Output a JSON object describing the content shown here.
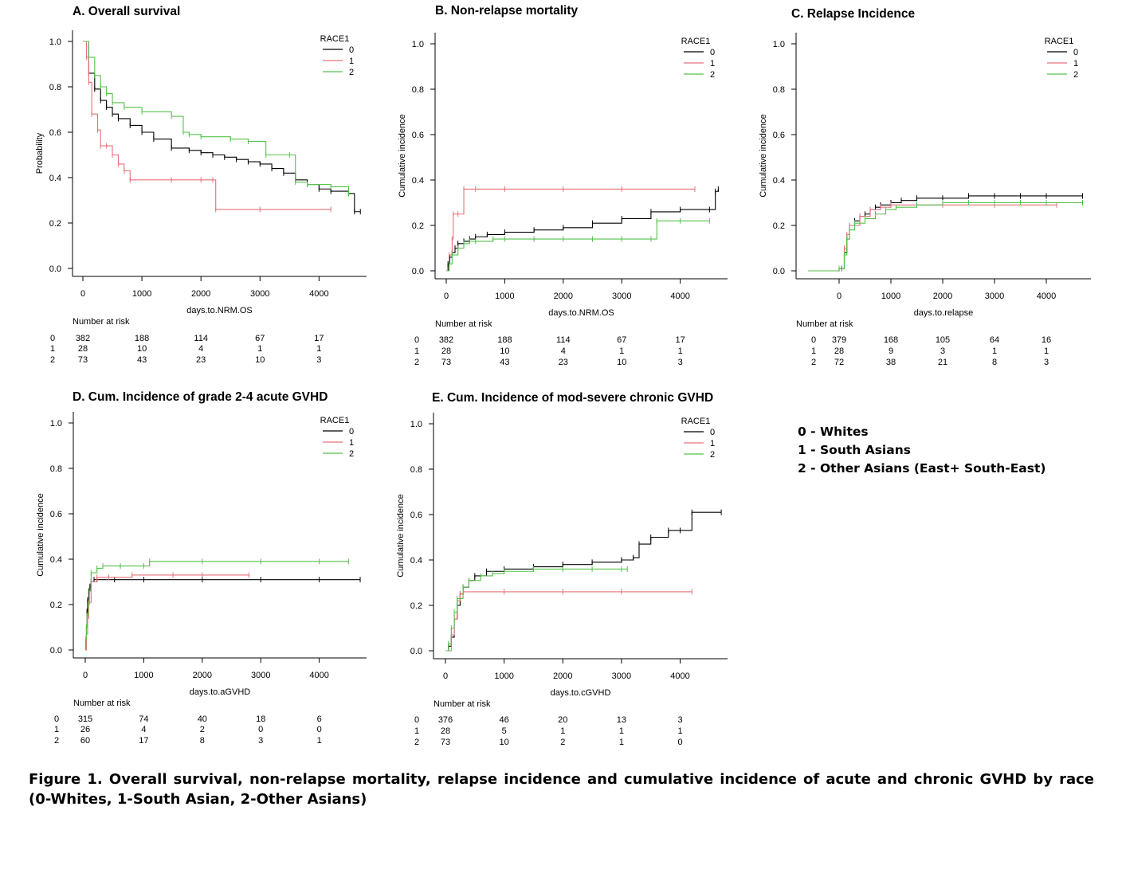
{
  "colors": {
    "race0": "#000000",
    "race1": "#e8707a",
    "race2": "#55c24a"
  },
  "legend_key": [
    "0 - Whites",
    "1 - South Asians",
    "2 - Other Asians (East+ South-East)"
  ],
  "caption": "Figure 1.  Overall survival, non-relapse mortality, relapse incidence and cumulative incidence of acute and chronic GVHD by race (0-Whites, 1-South Asian, 2-Other Asians)",
  "chart_data": [
    {
      "id": "A",
      "type": "line",
      "title": "A. Overall survival",
      "xlabel": "days.to.NRM.OS",
      "ylabel": "Probability",
      "xlim": [
        0,
        4700
      ],
      "ylim": [
        0,
        1
      ],
      "xticks": [
        "0",
        "1000",
        "2000",
        "3000",
        "4000"
      ],
      "yticks": [
        "0.0",
        "0.2",
        "0.4",
        "0.6",
        "0.8",
        "1.0"
      ],
      "legend_title": "RACE1",
      "legend_position": "top-right",
      "series": [
        {
          "name": "0",
          "color": "#000000",
          "x": [
            0,
            100,
            200,
            300,
            400,
            500,
            600,
            800,
            1000,
            1200,
            1500,
            1800,
            2000,
            2200,
            2400,
            2600,
            2800,
            3000,
            3200,
            3400,
            3600,
            3800,
            4000,
            4200,
            4500,
            4600,
            4700
          ],
          "y": [
            1.0,
            0.86,
            0.79,
            0.74,
            0.71,
            0.68,
            0.66,
            0.63,
            0.6,
            0.57,
            0.53,
            0.52,
            0.51,
            0.5,
            0.49,
            0.48,
            0.47,
            0.46,
            0.44,
            0.42,
            0.39,
            0.37,
            0.35,
            0.34,
            0.33,
            0.25,
            0.25
          ]
        },
        {
          "name": "1",
          "color": "#e8707a",
          "x": [
            0,
            60,
            100,
            150,
            250,
            300,
            400,
            500,
            600,
            700,
            800,
            1500,
            2000,
            2200,
            2250,
            3000,
            4200
          ],
          "y": [
            1.0,
            0.93,
            0.82,
            0.68,
            0.61,
            0.54,
            0.54,
            0.5,
            0.46,
            0.43,
            0.39,
            0.39,
            0.39,
            0.39,
            0.26,
            0.26,
            0.26
          ]
        },
        {
          "name": "2",
          "color": "#55c24a",
          "x": [
            0,
            100,
            200,
            300,
            400,
            500,
            700,
            1000,
            1500,
            1700,
            1800,
            2000,
            2500,
            2800,
            3100,
            3500,
            3600,
            3800,
            4200,
            4500
          ],
          "y": [
            1.0,
            0.93,
            0.85,
            0.8,
            0.77,
            0.73,
            0.71,
            0.69,
            0.67,
            0.6,
            0.59,
            0.58,
            0.57,
            0.56,
            0.5,
            0.5,
            0.38,
            0.37,
            0.36,
            0.33
          ]
        }
      ],
      "risk_table": {
        "label": "Number at risk",
        "rows": [
          "0",
          "1",
          "2"
        ],
        "x": [
          0,
          1000,
          2000,
          3000,
          4000
        ],
        "values": [
          [
            "382",
            "188",
            "114",
            "67",
            "17"
          ],
          [
            "28",
            "10",
            "4",
            "1",
            "1"
          ],
          [
            "73",
            "43",
            "23",
            "10",
            "3"
          ]
        ]
      }
    },
    {
      "id": "B",
      "type": "line",
      "title": "B. Non-relapse mortality",
      "xlabel": "days.to.NRM.OS",
      "ylabel": "Cumulative incidence",
      "xlim": [
        0,
        4700
      ],
      "ylim": [
        0,
        1
      ],
      "xticks": [
        "0",
        "1000",
        "2000",
        "3000",
        "4000"
      ],
      "yticks": [
        "0.0",
        "0.2",
        "0.4",
        "0.6",
        "0.8",
        "1.0"
      ],
      "legend_title": "RACE1",
      "legend_position": "top-right",
      "series": [
        {
          "name": "0",
          "color": "#000000",
          "x": [
            0,
            30,
            60,
            100,
            150,
            200,
            300,
            400,
            500,
            700,
            1000,
            1500,
            2000,
            2500,
            3000,
            3500,
            4000,
            4500,
            4600,
            4650
          ],
          "y": [
            0.0,
            0.03,
            0.06,
            0.08,
            0.1,
            0.12,
            0.13,
            0.14,
            0.15,
            0.16,
            0.17,
            0.18,
            0.19,
            0.21,
            0.23,
            0.26,
            0.27,
            0.27,
            0.35,
            0.36
          ]
        },
        {
          "name": "1",
          "color": "#e8707a",
          "x": [
            0,
            50,
            100,
            120,
            200,
            300,
            500,
            1000,
            2000,
            3000,
            4250
          ],
          "y": [
            0.0,
            0.07,
            0.14,
            0.25,
            0.25,
            0.36,
            0.36,
            0.36,
            0.36,
            0.36,
            0.36
          ]
        },
        {
          "name": "2",
          "color": "#55c24a",
          "x": [
            0,
            50,
            100,
            200,
            300,
            400,
            500,
            800,
            1000,
            1500,
            2000,
            2500,
            3000,
            3500,
            3600,
            4000,
            4500
          ],
          "y": [
            0.0,
            0.03,
            0.07,
            0.1,
            0.12,
            0.13,
            0.13,
            0.14,
            0.14,
            0.14,
            0.14,
            0.14,
            0.14,
            0.14,
            0.22,
            0.22,
            0.22
          ]
        }
      ],
      "risk_table": {
        "label": "Number at risk",
        "rows": [
          "0",
          "1",
          "2"
        ],
        "x": [
          0,
          1000,
          2000,
          3000,
          4000
        ],
        "values": [
          [
            "382",
            "188",
            "114",
            "67",
            "17"
          ],
          [
            "28",
            "10",
            "4",
            "1",
            "1"
          ],
          [
            "73",
            "43",
            "23",
            "10",
            "3"
          ]
        ]
      }
    },
    {
      "id": "C",
      "type": "line",
      "title": "C. Relapse Incidence",
      "xlabel": "days.to.relapse",
      "ylabel": "Cumulative incidence",
      "xlim": [
        -600,
        4900
      ],
      "ylim": [
        0,
        1
      ],
      "xticks": [
        "0",
        "1000",
        "2000",
        "3000",
        "4000"
      ],
      "yticks": [
        "0.0",
        "0.2",
        "0.4",
        "0.6",
        "0.8",
        "1.0"
      ],
      "legend_title": "RACE1",
      "legend_position": "top-right",
      "series": [
        {
          "name": "0",
          "color": "#000000",
          "x": [
            -600,
            0,
            50,
            100,
            150,
            200,
            300,
            400,
            500,
            600,
            700,
            800,
            1000,
            1200,
            1500,
            2000,
            2500,
            3000,
            3500,
            4000,
            4700
          ],
          "y": [
            0.0,
            0.01,
            0.01,
            0.08,
            0.14,
            0.2,
            0.22,
            0.24,
            0.25,
            0.27,
            0.28,
            0.29,
            0.3,
            0.31,
            0.32,
            0.32,
            0.33,
            0.33,
            0.33,
            0.33,
            0.33
          ]
        },
        {
          "name": "1",
          "color": "#e8707a",
          "x": [
            -600,
            0,
            50,
            100,
            150,
            200,
            400,
            600,
            800,
            1000,
            1500,
            2000,
            3000,
            4200
          ],
          "y": [
            0.0,
            0.01,
            0.01,
            0.1,
            0.16,
            0.2,
            0.24,
            0.27,
            0.28,
            0.29,
            0.29,
            0.29,
            0.29,
            0.29
          ]
        },
        {
          "name": "2",
          "color": "#55c24a",
          "x": [
            -600,
            0,
            50,
            100,
            150,
            200,
            300,
            500,
            700,
            900,
            1100,
            1500,
            2000,
            2500,
            3000,
            3500,
            4000,
            4700
          ],
          "y": [
            0.0,
            0.01,
            0.01,
            0.07,
            0.14,
            0.18,
            0.21,
            0.23,
            0.25,
            0.27,
            0.28,
            0.29,
            0.3,
            0.3,
            0.3,
            0.3,
            0.3,
            0.3
          ]
        }
      ],
      "risk_table": {
        "label": "Number at risk",
        "rows": [
          "0",
          "1",
          "2"
        ],
        "x": [
          0,
          1000,
          2000,
          3000,
          4000
        ],
        "values": [
          [
            "379",
            "168",
            "105",
            "64",
            "16"
          ],
          [
            "28",
            "9",
            "3",
            "1",
            "1"
          ],
          [
            "72",
            "38",
            "21",
            "8",
            "3"
          ]
        ]
      }
    },
    {
      "id": "D",
      "type": "line",
      "title": "D. Cum. Incidence of grade 2-4 acute GVHD",
      "xlabel": "days.to.aGVHD",
      "ylabel": "Cumulative incidence",
      "xlim": [
        0,
        4700
      ],
      "ylim": [
        0,
        1
      ],
      "xticks": [
        "0",
        "1000",
        "2000",
        "3000",
        "4000"
      ],
      "yticks": [
        "0.0",
        "0.2",
        "0.4",
        "0.6",
        "0.8",
        "1.0"
      ],
      "legend_title": "RACE1",
      "legend_position": "top-right",
      "series": [
        {
          "name": "0",
          "color": "#000000",
          "x": [
            0,
            10,
            20,
            30,
            40,
            60,
            80,
            100,
            150,
            200,
            500,
            1000,
            2000,
            3000,
            4000,
            4700
          ],
          "y": [
            0.0,
            0.04,
            0.1,
            0.17,
            0.22,
            0.26,
            0.28,
            0.3,
            0.31,
            0.31,
            0.31,
            0.31,
            0.31,
            0.31,
            0.31,
            0.31
          ]
        },
        {
          "name": "1",
          "color": "#e8707a",
          "x": [
            0,
            20,
            40,
            60,
            100,
            200,
            400,
            800,
            1500,
            2000,
            2800
          ],
          "y": [
            0.0,
            0.07,
            0.14,
            0.21,
            0.3,
            0.32,
            0.32,
            0.33,
            0.33,
            0.33,
            0.33
          ]
        },
        {
          "name": "2",
          "color": "#55c24a",
          "x": [
            0,
            10,
            20,
            30,
            50,
            70,
            100,
            200,
            300,
            600,
            1000,
            1100,
            2000,
            3000,
            4000,
            4500
          ],
          "y": [
            0.0,
            0.05,
            0.1,
            0.15,
            0.2,
            0.26,
            0.34,
            0.36,
            0.37,
            0.37,
            0.37,
            0.39,
            0.39,
            0.39,
            0.39,
            0.39
          ]
        }
      ],
      "risk_table": {
        "label": "Number at risk",
        "rows": [
          "0",
          "1",
          "2"
        ],
        "x": [
          0,
          1000,
          2000,
          3000,
          4000
        ],
        "values": [
          [
            "315",
            "74",
            "40",
            "18",
            "6"
          ],
          [
            "26",
            "4",
            "2",
            "0",
            "0"
          ],
          [
            "60",
            "17",
            "8",
            "3",
            "1"
          ]
        ]
      }
    },
    {
      "id": "E",
      "type": "line",
      "title": "E. Cum. Incidence of mod-severe chronic GVHD",
      "xlabel": "days.to.cGVHD",
      "ylabel": "Cumulative incidence",
      "xlim": [
        0,
        4700
      ],
      "ylim": [
        0,
        1
      ],
      "xticks": [
        "0",
        "1000",
        "2000",
        "3000",
        "4000"
      ],
      "yticks": [
        "0.0",
        "0.2",
        "0.4",
        "0.6",
        "0.8",
        "1.0"
      ],
      "legend_title": "RACE1",
      "legend_position": "top-right",
      "series": [
        {
          "name": "0",
          "color": "#000000",
          "x": [
            0,
            50,
            100,
            150,
            200,
            250,
            300,
            400,
            500,
            700,
            1000,
            1500,
            2000,
            2500,
            3000,
            3200,
            3300,
            3500,
            3800,
            4000,
            4200,
            4700
          ],
          "y": [
            0.0,
            0.02,
            0.06,
            0.14,
            0.2,
            0.25,
            0.28,
            0.31,
            0.33,
            0.35,
            0.36,
            0.37,
            0.38,
            0.39,
            0.4,
            0.41,
            0.47,
            0.5,
            0.53,
            0.53,
            0.61,
            0.61
          ]
        },
        {
          "name": "1",
          "color": "#e8707a",
          "x": [
            0,
            100,
            150,
            200,
            250,
            300,
            1000,
            2000,
            3000,
            4200
          ],
          "y": [
            0.0,
            0.07,
            0.14,
            0.22,
            0.25,
            0.26,
            0.26,
            0.26,
            0.26,
            0.26
          ]
        },
        {
          "name": "2",
          "color": "#55c24a",
          "x": [
            0,
            50,
            100,
            150,
            200,
            300,
            400,
            600,
            800,
            1000,
            1500,
            2000,
            2500,
            3000,
            3100
          ],
          "y": [
            0.0,
            0.03,
            0.1,
            0.17,
            0.23,
            0.28,
            0.31,
            0.33,
            0.34,
            0.35,
            0.36,
            0.36,
            0.36,
            0.36,
            0.36
          ]
        }
      ],
      "risk_table": {
        "label": "Number at risk",
        "rows": [
          "0",
          "1",
          "2"
        ],
        "x": [
          0,
          1000,
          2000,
          3000,
          4000
        ],
        "values": [
          [
            "376",
            "46",
            "20",
            "13",
            "3"
          ],
          [
            "28",
            "5",
            "1",
            "1",
            "1"
          ],
          [
            "73",
            "10",
            "2",
            "1",
            "0"
          ]
        ]
      }
    }
  ]
}
